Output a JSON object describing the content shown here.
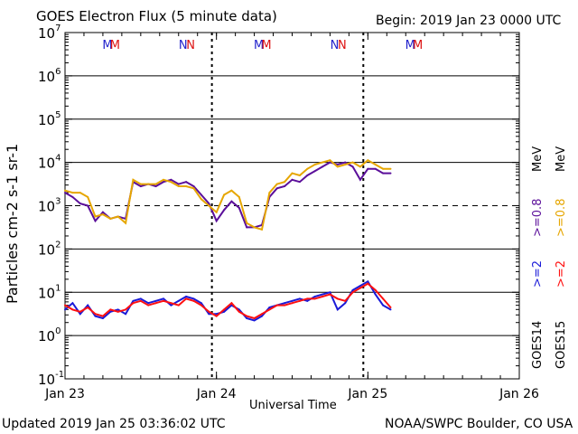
{
  "header": {
    "title": "GOES Electron Flux (5 minute data)",
    "begin": "Begin: 2019 Jan 23 0000 UTC"
  },
  "footer": {
    "updated": "Updated 2019 Jan 25 03:36:02 UTC",
    "credit": "NOAA/SWPC Boulder, CO USA"
  },
  "colors": {
    "goes14_high": "#5b0f9a",
    "goes15_high": "#e6a600",
    "goes14_low": "#1a1ad8",
    "goes15_low": "#ff1010",
    "marker_m": [
      "#2222cc",
      "#dd1111"
    ],
    "marker_n": [
      "#2222cc",
      "#dd1111"
    ]
  },
  "markers": {
    "items": [
      {
        "label": "M",
        "day": 0.28,
        "color": "#2222cc"
      },
      {
        "label": "M",
        "day": 0.33,
        "color": "#dd1111"
      },
      {
        "label": "N",
        "day": 0.78,
        "color": "#2222cc"
      },
      {
        "label": "N",
        "day": 0.83,
        "color": "#dd1111"
      },
      {
        "label": "M",
        "day": 1.28,
        "color": "#2222cc"
      },
      {
        "label": "M",
        "day": 1.33,
        "color": "#dd1111"
      },
      {
        "label": "N",
        "day": 1.78,
        "color": "#2222cc"
      },
      {
        "label": "N",
        "day": 1.83,
        "color": "#dd1111"
      },
      {
        "label": "M",
        "day": 2.28,
        "color": "#2222cc"
      },
      {
        "label": "M",
        "day": 2.33,
        "color": "#dd1111"
      }
    ]
  },
  "legend": {
    "goes14": "GOES14",
    "goes15": "GOES15",
    "g14_low": ">=2",
    "g15_low": ">=2",
    "g14_high": ">=0.8",
    "g15_high": ">=0.8",
    "unit": "MeV"
  },
  "chart_data": {
    "type": "line",
    "title": "GOES Electron Flux (5 minute data)",
    "xlabel": "Universal Time",
    "ylabel": "Particles cm-2 s-1 sr-1",
    "yscale": "log",
    "ylim_exponent": [
      -1,
      7
    ],
    "yticks": [
      {
        "base": "10",
        "exp": "-1"
      },
      {
        "base": "10",
        "exp": "0"
      },
      {
        "base": "10",
        "exp": "1"
      },
      {
        "base": "10",
        "exp": "2"
      },
      {
        "base": "10",
        "exp": "3"
      },
      {
        "base": "10",
        "exp": "4"
      },
      {
        "base": "10",
        "exp": "5"
      },
      {
        "base": "10",
        "exp": "6"
      },
      {
        "base": "10",
        "exp": "7"
      }
    ],
    "xlim_days": [
      0,
      3
    ],
    "xticks": [
      {
        "label": "Jan 23",
        "day": 0
      },
      {
        "label": "Jan 24",
        "day": 1
      },
      {
        "label": "Jan 25",
        "day": 2
      },
      {
        "label": "Jan 26",
        "day": 3
      }
    ],
    "threshold_exponent": 3,
    "solid_gridlines_exponent": [
      0,
      1,
      2,
      4,
      5,
      6
    ],
    "series": [
      {
        "name": "GOES14 >=0.8 MeV",
        "color": "#5b0f9a",
        "x": [
          0,
          0.05,
          0.1,
          0.15,
          0.2,
          0.25,
          0.3,
          0.35,
          0.4,
          0.45,
          0.5,
          0.55,
          0.6,
          0.65,
          0.7,
          0.75,
          0.8,
          0.85,
          0.9,
          0.95,
          1.0,
          1.05,
          1.1,
          1.15,
          1.2,
          1.25,
          1.3,
          1.35,
          1.4,
          1.45,
          1.5,
          1.55,
          1.6,
          1.65,
          1.7,
          1.75,
          1.8,
          1.85,
          1.9,
          1.95,
          2.0,
          2.05,
          2.1,
          2.15
        ],
        "y_exp": [
          3.3,
          3.2,
          3.05,
          3.0,
          2.65,
          2.85,
          2.7,
          2.75,
          2.7,
          3.55,
          3.45,
          3.5,
          3.45,
          3.55,
          3.6,
          3.5,
          3.55,
          3.45,
          3.25,
          3.05,
          2.65,
          2.9,
          3.1,
          2.95,
          2.5,
          2.5,
          2.55,
          3.2,
          3.4,
          3.45,
          3.6,
          3.55,
          3.7,
          3.8,
          3.9,
          4.0,
          3.95,
          4.0,
          3.9,
          3.6,
          3.85,
          3.85,
          3.75,
          3.75
        ]
      },
      {
        "name": "GOES15 >=0.8 MeV",
        "color": "#e6a600",
        "x": [
          0,
          0.05,
          0.1,
          0.15,
          0.2,
          0.25,
          0.3,
          0.35,
          0.4,
          0.45,
          0.5,
          0.55,
          0.6,
          0.65,
          0.7,
          0.75,
          0.8,
          0.85,
          0.9,
          0.95,
          1.0,
          1.05,
          1.1,
          1.15,
          1.2,
          1.25,
          1.3,
          1.35,
          1.4,
          1.45,
          1.5,
          1.55,
          1.6,
          1.65,
          1.7,
          1.75,
          1.8,
          1.85,
          1.9,
          1.95,
          2.0,
          2.05,
          2.1,
          2.15
        ],
        "y_exp": [
          3.35,
          3.3,
          3.3,
          3.2,
          2.75,
          2.8,
          2.7,
          2.75,
          2.6,
          3.6,
          3.5,
          3.5,
          3.5,
          3.6,
          3.55,
          3.45,
          3.45,
          3.4,
          3.15,
          3.0,
          2.85,
          3.25,
          3.35,
          3.2,
          2.6,
          2.5,
          2.45,
          3.3,
          3.5,
          3.55,
          3.75,
          3.7,
          3.85,
          3.95,
          4.0,
          4.05,
          3.9,
          3.95,
          4.0,
          3.9,
          4.05,
          3.95,
          3.85,
          3.85
        ]
      },
      {
        "name": "GOES14 >=2 MeV",
        "color": "#1a1ad8",
        "x": [
          0,
          0.05,
          0.1,
          0.15,
          0.2,
          0.25,
          0.3,
          0.35,
          0.4,
          0.45,
          0.5,
          0.55,
          0.6,
          0.65,
          0.7,
          0.75,
          0.8,
          0.85,
          0.9,
          0.95,
          1.0,
          1.05,
          1.1,
          1.15,
          1.2,
          1.25,
          1.3,
          1.35,
          1.4,
          1.45,
          1.5,
          1.55,
          1.6,
          1.65,
          1.7,
          1.75,
          1.8,
          1.85,
          1.9,
          1.95,
          2.0,
          2.05,
          2.1,
          2.15
        ],
        "y_exp": [
          0.6,
          0.75,
          0.5,
          0.7,
          0.45,
          0.4,
          0.55,
          0.6,
          0.5,
          0.8,
          0.85,
          0.75,
          0.8,
          0.85,
          0.7,
          0.8,
          0.9,
          0.85,
          0.75,
          0.5,
          0.5,
          0.55,
          0.7,
          0.6,
          0.4,
          0.35,
          0.45,
          0.65,
          0.7,
          0.75,
          0.8,
          0.85,
          0.8,
          0.9,
          0.95,
          1.0,
          0.6,
          0.75,
          1.05,
          1.15,
          1.25,
          0.95,
          0.7,
          0.6
        ]
      },
      {
        "name": "GOES15 >=2 MeV",
        "color": "#ff1010",
        "x": [
          0,
          0.05,
          0.1,
          0.15,
          0.2,
          0.25,
          0.3,
          0.35,
          0.4,
          0.45,
          0.5,
          0.55,
          0.6,
          0.65,
          0.7,
          0.75,
          0.8,
          0.85,
          0.9,
          0.95,
          1.0,
          1.05,
          1.1,
          1.15,
          1.2,
          1.25,
          1.3,
          1.35,
          1.4,
          1.45,
          1.5,
          1.55,
          1.6,
          1.65,
          1.7,
          1.75,
          1.8,
          1.85,
          1.9,
          1.95,
          2.0,
          2.05,
          2.1,
          2.15
        ],
        "y_exp": [
          0.7,
          0.6,
          0.55,
          0.65,
          0.5,
          0.45,
          0.6,
          0.55,
          0.6,
          0.75,
          0.8,
          0.7,
          0.75,
          0.8,
          0.75,
          0.7,
          0.85,
          0.8,
          0.7,
          0.55,
          0.45,
          0.6,
          0.75,
          0.55,
          0.45,
          0.4,
          0.5,
          0.6,
          0.7,
          0.7,
          0.75,
          0.8,
          0.85,
          0.85,
          0.9,
          0.95,
          0.85,
          0.8,
          1.0,
          1.1,
          1.2,
          1.05,
          0.85,
          0.65
        ]
      }
    ]
  }
}
